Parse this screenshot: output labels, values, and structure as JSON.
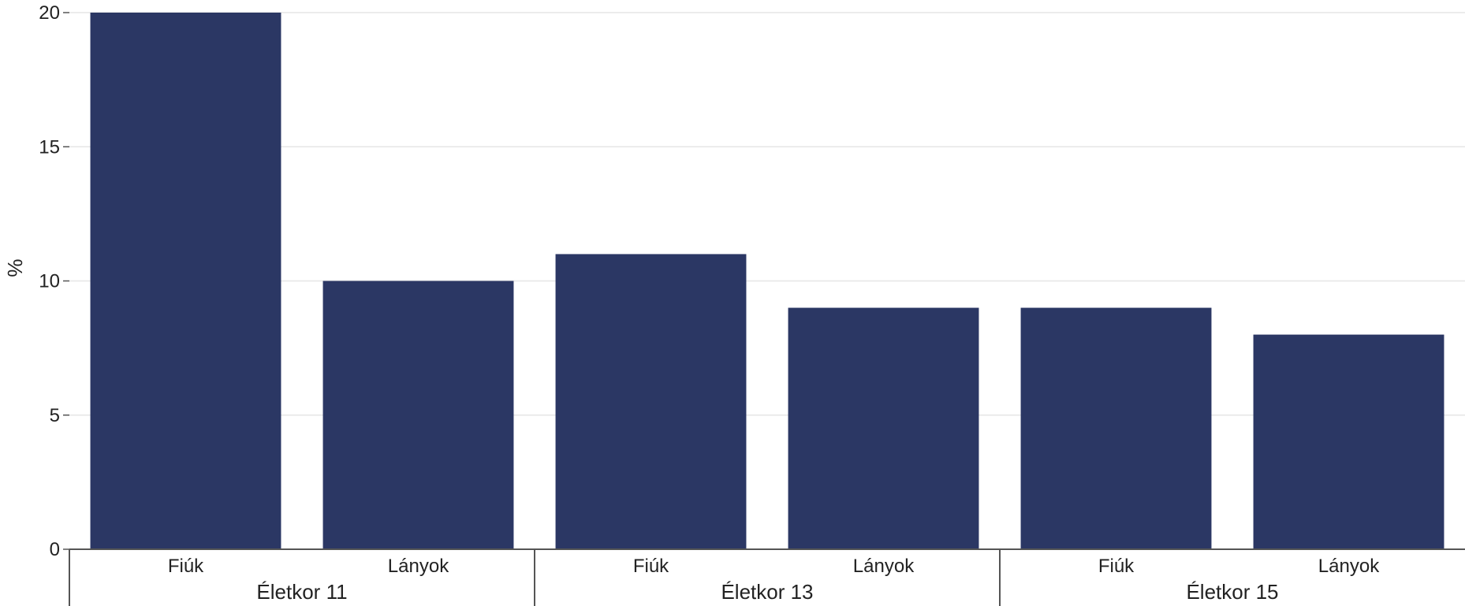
{
  "chart_data": {
    "type": "bar",
    "ylabel": "%",
    "ylim": [
      0,
      20
    ],
    "yticks": [
      0,
      5,
      10,
      15,
      20
    ],
    "grid": true,
    "bar_color": "#2b3764",
    "groups": [
      {
        "label": "Életkor 11",
        "bars": [
          {
            "category": "Fiúk",
            "value": 20
          },
          {
            "category": "Lányok",
            "value": 10
          }
        ]
      },
      {
        "label": "Életkor 13",
        "bars": [
          {
            "category": "Fiúk",
            "value": 11
          },
          {
            "category": "Lányok",
            "value": 9
          }
        ]
      },
      {
        "label": "Életkor 15",
        "bars": [
          {
            "category": "Fiúk",
            "value": 9
          },
          {
            "category": "Lányok",
            "value": 8
          }
        ]
      }
    ]
  }
}
